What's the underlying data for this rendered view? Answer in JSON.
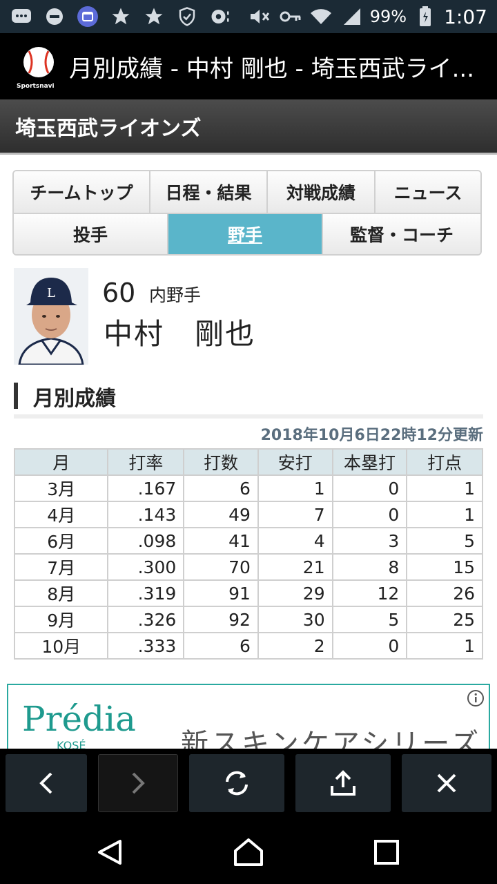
{
  "status_bar": {
    "battery": "99%",
    "time": "1:07",
    "icons": [
      "message-icon",
      "dnd-icon",
      "calendar-icon",
      "star-icon",
      "star-icon",
      "shield-icon",
      "record-icon",
      "mute-icon",
      "key-icon",
      "wifi-icon",
      "signal-icon",
      "battery-icon"
    ]
  },
  "header": {
    "logo_text": "Sportsnavi",
    "title": "月別成績 - 中村 剛也 - 埼玉西武ライ..."
  },
  "team": {
    "name": "埼玉西武ライオンズ"
  },
  "tabs": {
    "row1": [
      "チームトップ",
      "日程・結果",
      "対戦成績",
      "ニュース"
    ],
    "row2": [
      "投手",
      "野手",
      "監督・コーチ"
    ],
    "active": "野手"
  },
  "player": {
    "number": "60",
    "position": "内野手",
    "name": "中村　剛也"
  },
  "section": {
    "title": "月別成績",
    "updated": "2018年10月6日22時12分更新"
  },
  "table": {
    "headers": [
      "月",
      "打率",
      "打数",
      "安打",
      "本塁打",
      "打点"
    ],
    "rows": [
      [
        "3月",
        ".167",
        "6",
        "1",
        "0",
        "1"
      ],
      [
        "4月",
        ".143",
        "49",
        "7",
        "0",
        "1"
      ],
      [
        "6月",
        ".098",
        "41",
        "4",
        "3",
        "5"
      ],
      [
        "7月",
        ".300",
        "70",
        "21",
        "8",
        "15"
      ],
      [
        "8月",
        ".319",
        "91",
        "29",
        "12",
        "26"
      ],
      [
        "9月",
        ".326",
        "92",
        "30",
        "5",
        "25"
      ],
      [
        "10月",
        ".333",
        "6",
        "2",
        "0",
        "1"
      ]
    ]
  },
  "ad": {
    "brand": "Prédia",
    "sub": "KOSÉ",
    "copy": "新スキンケアシリーズ"
  },
  "colors": {
    "active_tab": "#5ab5ca",
    "table_header": "#d9e6ea",
    "ad_accent": "#1e9a8e"
  }
}
